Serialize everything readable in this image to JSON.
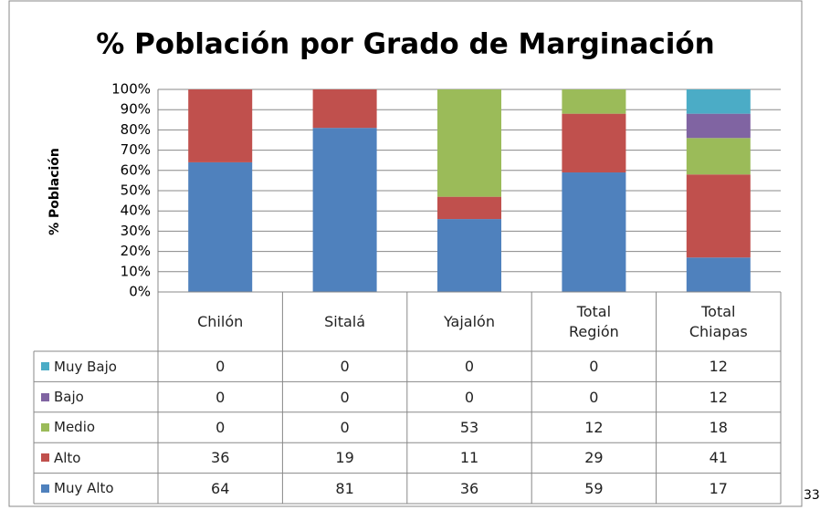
{
  "chart_data": {
    "type": "stacked_bar",
    "title": "% Población por Grado de Marginación",
    "y_label": "% Población",
    "categories": [
      "Chilón",
      "Sitalá",
      "Yajalón",
      "Total Región",
      "Total Chiapas"
    ],
    "series": [
      {
        "name": "Muy Alto",
        "color": "#4f81bd",
        "values": [
          64,
          81,
          36,
          59,
          17
        ]
      },
      {
        "name": "Alto",
        "color": "#c0504d",
        "values": [
          36,
          19,
          11,
          29,
          41
        ]
      },
      {
        "name": "Medio",
        "color": "#9bbb59",
        "values": [
          0,
          0,
          53,
          12,
          18
        ]
      },
      {
        "name": "Bajo",
        "color": "#8064a2",
        "values": [
          0,
          0,
          0,
          0,
          12
        ]
      },
      {
        "name": "Muy Bajo",
        "color": "#4bacc6",
        "values": [
          0,
          0,
          0,
          0,
          12
        ]
      }
    ],
    "ylim": [
      0,
      100
    ],
    "yticks": [
      {
        "value": 0,
        "label": "0%"
      },
      {
        "value": 10,
        "label": "10%"
      },
      {
        "value": 20,
        "label": "20%"
      },
      {
        "value": 30,
        "label": "30%"
      },
      {
        "value": 40,
        "label": "40%"
      },
      {
        "value": 50,
        "label": "50%"
      },
      {
        "value": 60,
        "label": "60%"
      },
      {
        "value": 70,
        "label": "70%"
      },
      {
        "value": 80,
        "label": "80%"
      },
      {
        "value": 90,
        "label": "90%"
      },
      {
        "value": 100,
        "label": "100%"
      }
    ],
    "grid": true,
    "data_table": true,
    "page_number": "33"
  }
}
